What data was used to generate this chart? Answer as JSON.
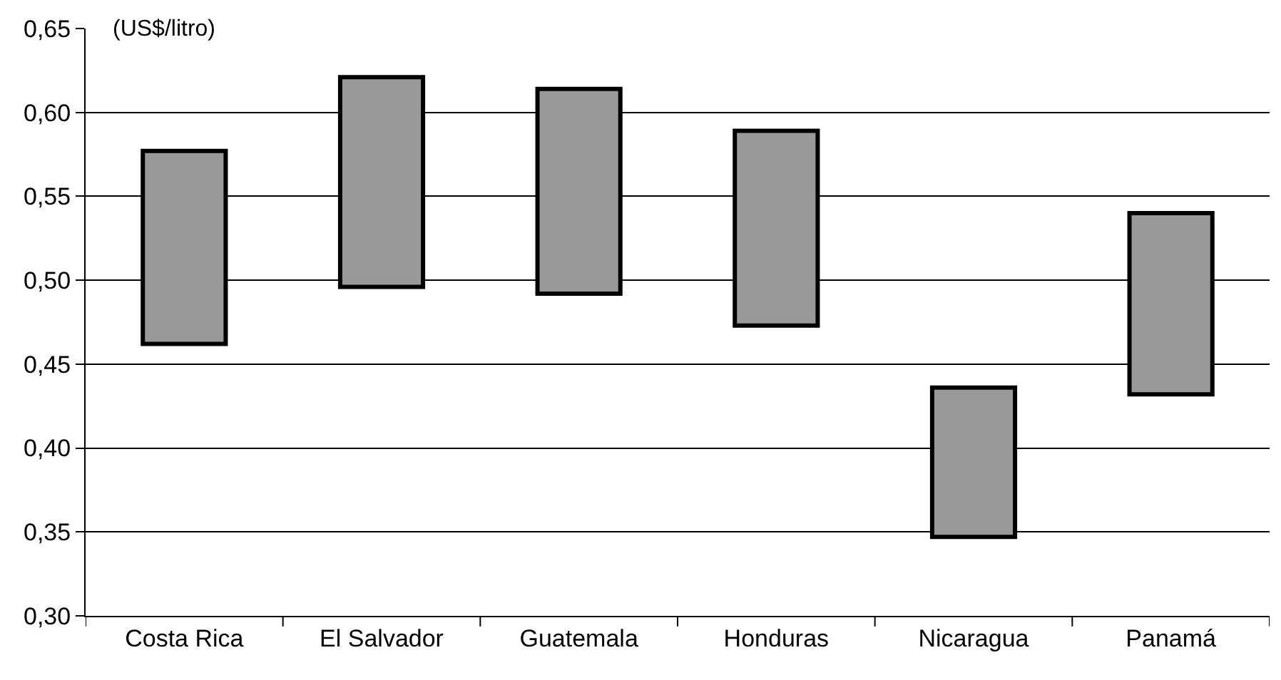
{
  "chart_data": {
    "type": "bar",
    "ylabel": "(US$/litro)",
    "categories": [
      "Costa Rica",
      "El Salvador",
      "Guatemala",
      "Honduras",
      "Nicaragua",
      "Panamá"
    ],
    "base": [
      0.462,
      0.496,
      0.492,
      0.473,
      0.347,
      0.432
    ],
    "values": [
      0.115,
      0.125,
      0.122,
      0.116,
      0.089,
      0.108
    ],
    "color": "#999999",
    "ylim": [
      0.3,
      0.65
    ],
    "yticks": [
      {
        "value": 0.3,
        "label": "0,30"
      },
      {
        "value": 0.35,
        "label": "0,35"
      },
      {
        "value": 0.4,
        "label": "0,40"
      },
      {
        "value": 0.45,
        "label": "0,45"
      },
      {
        "value": 0.5,
        "label": "0,50"
      },
      {
        "value": 0.55,
        "label": "0,55"
      },
      {
        "value": 0.6,
        "label": "0,60"
      },
      {
        "value": 0.65,
        "label": "0,65"
      }
    ],
    "grid": "y"
  }
}
